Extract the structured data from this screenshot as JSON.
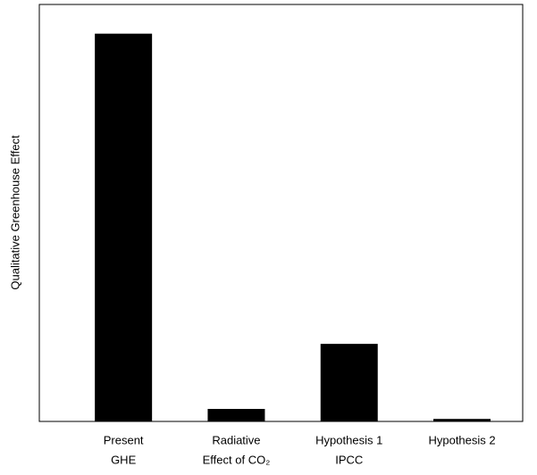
{
  "chart_data": {
    "type": "bar",
    "ylabel": "Qualitative Greenhouse Effect",
    "categories": [
      [
        "Present",
        "GHE"
      ],
      [
        "Radiative",
        "Effect of CO₂"
      ],
      [
        "Hypothesis 1",
        "IPCC"
      ],
      [
        "Hypothesis 2"
      ]
    ],
    "values": [
      93,
      3,
      18.6,
      0.6
    ],
    "color": "#000000",
    "ylim": [
      0,
      100
    ]
  }
}
